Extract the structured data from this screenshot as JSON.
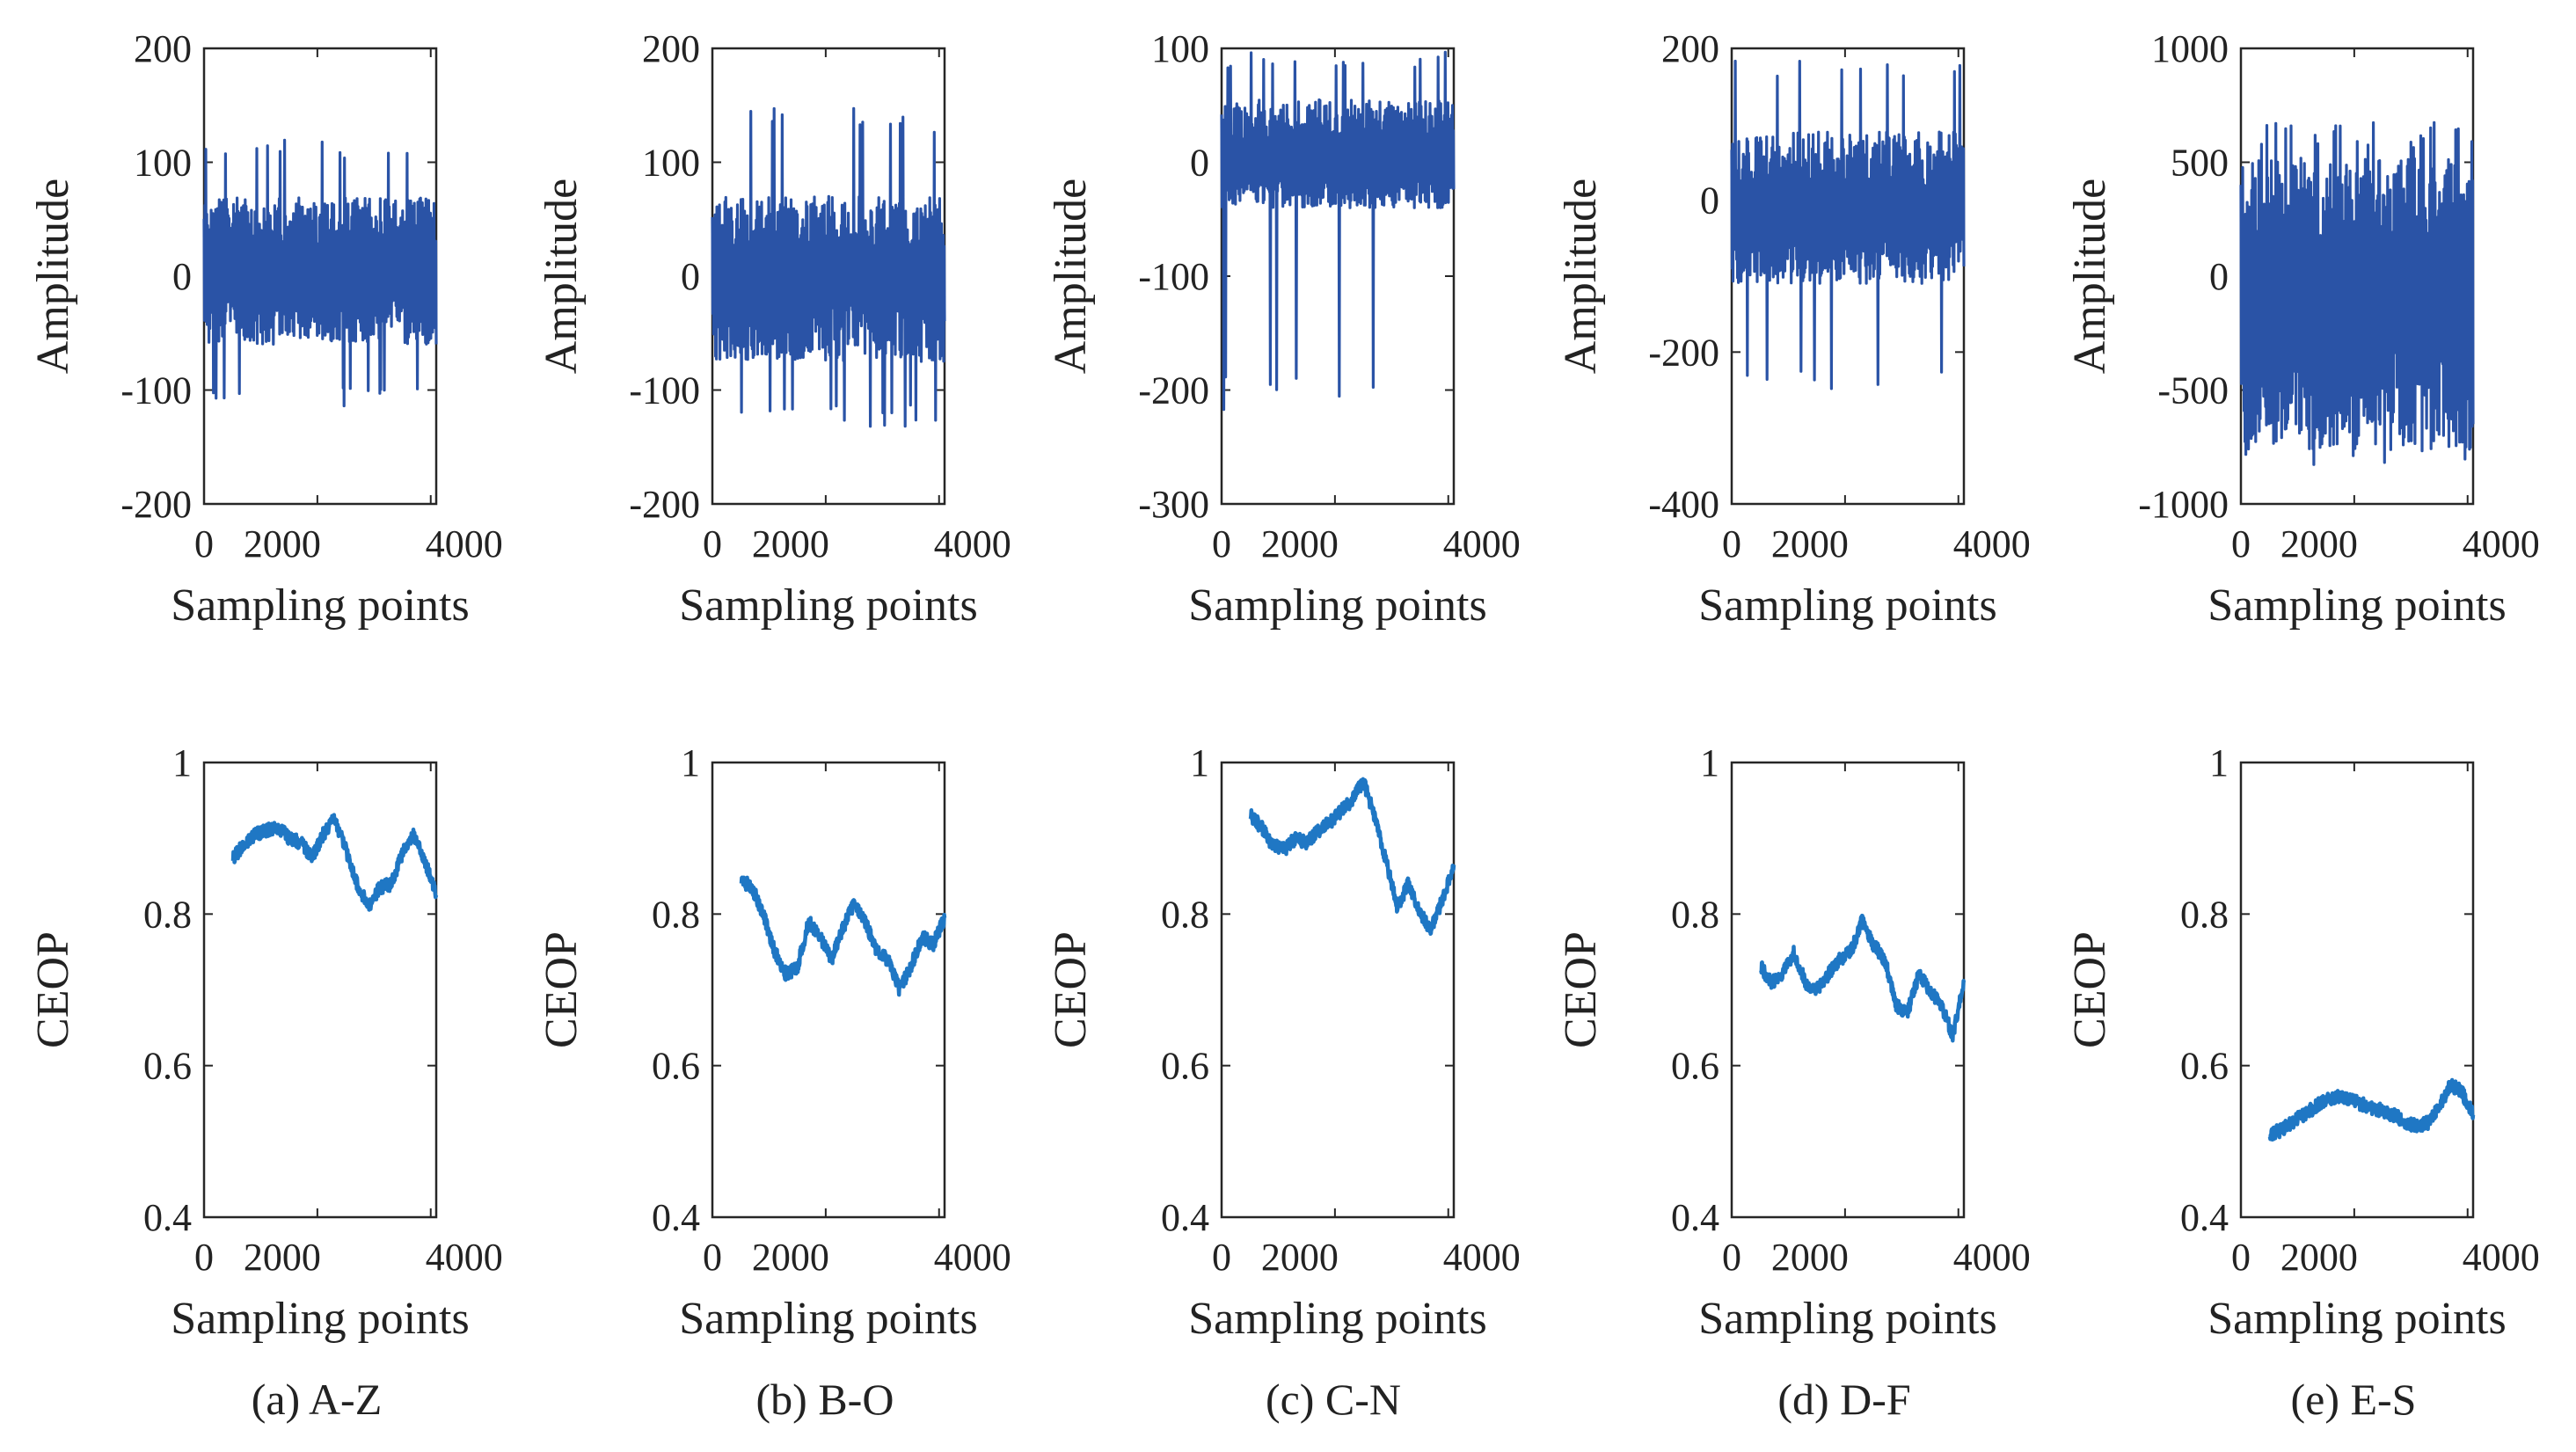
{
  "figure": {
    "panels": [
      {
        "caption": "(a) A-Z",
        "label": "A-Z"
      },
      {
        "caption": "(b) B-O",
        "label": "B-O"
      },
      {
        "caption": "(c) C-N",
        "label": "C-N"
      },
      {
        "caption": "(d) D-F",
        "label": "D-F"
      },
      {
        "caption": "(e) E-S",
        "label": "E-S"
      }
    ]
  },
  "chart_data": [
    {
      "panel": "A-Z",
      "row": "signal",
      "type": "line",
      "xlabel": "Sampling points",
      "ylabel": "Amplitude",
      "xlim": [
        0,
        4097
      ],
      "ylim": [
        -200,
        200
      ],
      "xticks": [
        0,
        2000,
        4000
      ],
      "yticks": [
        -200,
        -100,
        0,
        100,
        200
      ],
      "color": "#2a53a6",
      "envelope": {
        "center": 0,
        "up": 70,
        "down": -60,
        "peak_up": 120,
        "peak_down": -115
      }
    },
    {
      "panel": "B-O",
      "row": "signal",
      "type": "line",
      "xlabel": "Sampling points",
      "ylabel": "Amplitude",
      "xlim": [
        0,
        4097
      ],
      "ylim": [
        -200,
        200
      ],
      "xticks": [
        0,
        2000,
        4000
      ],
      "yticks": [
        -200,
        -100,
        0,
        100,
        200
      ],
      "color": "#2a53a6",
      "envelope": {
        "center": 0,
        "up": 70,
        "down": -75,
        "peak_up": 148,
        "peak_down": -132
      }
    },
    {
      "panel": "C-N",
      "row": "signal",
      "type": "line",
      "xlabel": "Sampling points",
      "ylabel": "Amplitude",
      "xlim": [
        0,
        4097
      ],
      "ylim": [
        -300,
        100
      ],
      "xticks": [
        0,
        2000,
        4000
      ],
      "yticks": [
        -300,
        -200,
        -100,
        0,
        100
      ],
      "color": "#2a53a6",
      "envelope": {
        "center": 0,
        "up": 55,
        "down": -40,
        "peak_up": 97,
        "peak_down": -220
      }
    },
    {
      "panel": "D-F",
      "row": "signal",
      "type": "line",
      "xlabel": "Sampling points",
      "ylabel": "Amplitude",
      "xlim": [
        0,
        4097
      ],
      "ylim": [
        -400,
        200
      ],
      "xticks": [
        0,
        2000,
        4000
      ],
      "yticks": [
        -400,
        -200,
        0,
        200
      ],
      "color": "#2a53a6",
      "envelope": {
        "center": -20,
        "up": 90,
        "down": -110,
        "peak_up": 185,
        "peak_down": -255
      }
    },
    {
      "panel": "E-S",
      "row": "signal",
      "type": "line",
      "xlabel": "Sampling points",
      "ylabel": "Amplitude",
      "xlim": [
        0,
        4097
      ],
      "ylim": [
        -1000,
        1000
      ],
      "xticks": [
        0,
        2000,
        4000
      ],
      "yticks": [
        -1000,
        -500,
        0,
        500,
        1000
      ],
      "color": "#2a53a6",
      "envelope": {
        "center": -100,
        "up": 520,
        "down": -760,
        "peak_up": 680,
        "peak_down": -830
      }
    },
    {
      "panel": "A-Z",
      "row": "ceop",
      "type": "line",
      "xlabel": "Sampling points",
      "ylabel": "CEOP",
      "xlim": [
        0,
        4097
      ],
      "ylim": [
        0.4,
        1
      ],
      "xticks": [
        0,
        2000,
        4000
      ],
      "yticks": [
        0.4,
        0.6,
        0.8,
        1
      ],
      "color": "#1f77c4",
      "x": [
        512,
        700,
        900,
        1100,
        1300,
        1500,
        1700,
        1900,
        2100,
        2300,
        2500,
        2700,
        2900,
        3100,
        3300,
        3500,
        3700,
        3900,
        4097
      ],
      "y": [
        0.875,
        0.89,
        0.905,
        0.91,
        0.915,
        0.9,
        0.895,
        0.875,
        0.905,
        0.925,
        0.885,
        0.84,
        0.81,
        0.835,
        0.84,
        0.88,
        0.905,
        0.87,
        0.825
      ]
    },
    {
      "panel": "B-O",
      "row": "ceop",
      "type": "line",
      "xlabel": "Sampling points",
      "ylabel": "CEOP",
      "xlim": [
        0,
        4097
      ],
      "ylim": [
        0.4,
        1
      ],
      "xticks": [
        0,
        2000,
        4000
      ],
      "yticks": [
        0.4,
        0.6,
        0.8,
        1
      ],
      "color": "#1f77c4",
      "x": [
        512,
        700,
        900,
        1100,
        1300,
        1500,
        1700,
        1900,
        2100,
        2300,
        2500,
        2700,
        2900,
        3100,
        3300,
        3500,
        3700,
        3900,
        4097
      ],
      "y": [
        0.845,
        0.835,
        0.8,
        0.75,
        0.72,
        0.73,
        0.79,
        0.77,
        0.74,
        0.78,
        0.815,
        0.79,
        0.75,
        0.74,
        0.7,
        0.73,
        0.77,
        0.76,
        0.795
      ]
    },
    {
      "panel": "C-N",
      "row": "ceop",
      "type": "line",
      "xlabel": "Sampling points",
      "ylabel": "CEOP",
      "xlim": [
        0,
        4097
      ],
      "ylim": [
        0.4,
        1
      ],
      "xticks": [
        0,
        2000,
        4000
      ],
      "yticks": [
        0.4,
        0.6,
        0.8,
        1
      ],
      "color": "#1f77c4",
      "x": [
        512,
        700,
        900,
        1100,
        1300,
        1500,
        1700,
        1900,
        2100,
        2300,
        2500,
        2700,
        2900,
        3100,
        3300,
        3500,
        3700,
        3900,
        4097
      ],
      "y": [
        0.93,
        0.915,
        0.89,
        0.885,
        0.9,
        0.895,
        0.91,
        0.92,
        0.935,
        0.95,
        0.975,
        0.93,
        0.87,
        0.81,
        0.84,
        0.8,
        0.78,
        0.82,
        0.865
      ]
    },
    {
      "panel": "D-F",
      "row": "ceop",
      "type": "line",
      "xlabel": "Sampling points",
      "ylabel": "CEOP",
      "xlim": [
        0,
        4097
      ],
      "ylim": [
        0.4,
        1
      ],
      "xticks": [
        0,
        2000,
        4000
      ],
      "yticks": [
        0.4,
        0.6,
        0.8,
        1
      ],
      "color": "#1f77c4",
      "x": [
        512,
        700,
        900,
        1100,
        1300,
        1500,
        1700,
        1900,
        2100,
        2300,
        2500,
        2700,
        2900,
        3100,
        3300,
        3500,
        3700,
        3900,
        4097
      ],
      "y": [
        0.73,
        0.71,
        0.72,
        0.75,
        0.71,
        0.7,
        0.72,
        0.74,
        0.75,
        0.79,
        0.76,
        0.74,
        0.68,
        0.67,
        0.72,
        0.7,
        0.68,
        0.64,
        0.71
      ]
    },
    {
      "panel": "E-S",
      "row": "ceop",
      "type": "line",
      "xlabel": "Sampling points",
      "ylabel": "CEOP",
      "xlim": [
        0,
        4097
      ],
      "ylim": [
        0.4,
        1
      ],
      "xticks": [
        0,
        2000,
        4000
      ],
      "yticks": [
        0.4,
        0.6,
        0.8,
        1
      ],
      "color": "#1f77c4",
      "x": [
        512,
        700,
        900,
        1100,
        1300,
        1500,
        1700,
        1900,
        2100,
        2300,
        2500,
        2700,
        2900,
        3100,
        3300,
        3500,
        3700,
        3900,
        4097
      ],
      "y": [
        0.51,
        0.515,
        0.525,
        0.535,
        0.545,
        0.555,
        0.56,
        0.555,
        0.55,
        0.545,
        0.54,
        0.535,
        0.525,
        0.52,
        0.525,
        0.545,
        0.575,
        0.565,
        0.535
      ]
    }
  ]
}
